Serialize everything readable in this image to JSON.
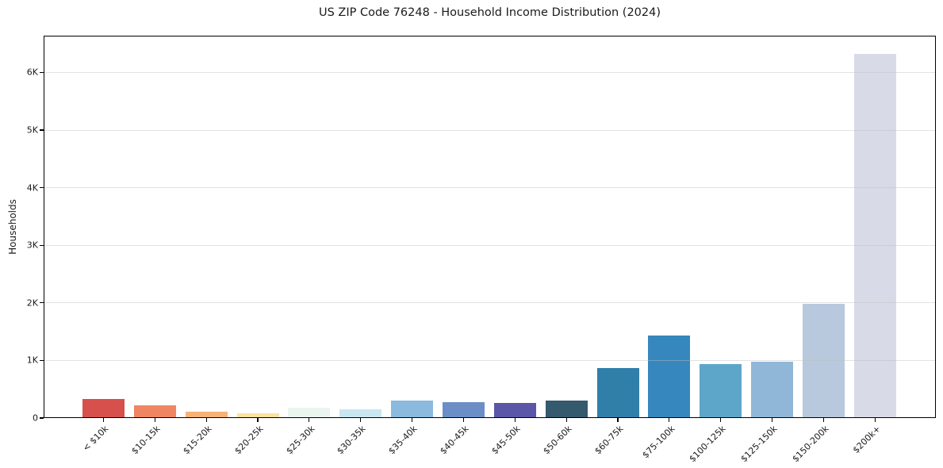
{
  "chart_data": {
    "type": "bar",
    "title": "US ZIP Code 76248 - Household Income Distribution (2024)",
    "xlabel": "",
    "ylabel": "Households",
    "categories": [
      "< $10k",
      "$10-15k",
      "$15-20k",
      "$20-25k",
      "$25-30k",
      "$30-35k",
      "$35-40k",
      "$40-45k",
      "$45-50k",
      "$50-60k",
      "$60-75k",
      "$75-100k",
      "$100-125k",
      "$125-150k",
      "$150-200k",
      "$200k+"
    ],
    "values": [
      330,
      215,
      115,
      85,
      185,
      145,
      305,
      280,
      260,
      310,
      870,
      1430,
      935,
      985,
      1990,
      6330
    ],
    "bar_colors": [
      "#d6504c",
      "#ef8562",
      "#f7b377",
      "#fae2a0",
      "#eaf5f0",
      "#c9e7f0",
      "#8abade",
      "#6b8ec6",
      "#5b56a7",
      "#35596d",
      "#2f7fa9",
      "#3587bd",
      "#5ea6c9",
      "#90b7d8",
      "#b8c8dd",
      "#d8dae7"
    ],
    "ytick_labels": [
      "0",
      "1K",
      "2K",
      "3K",
      "4K",
      "5K",
      "6K"
    ],
    "ytick_values": [
      0,
      1000,
      2000,
      3000,
      4000,
      5000,
      6000
    ],
    "ylim": [
      0,
      6640
    ],
    "grid": "horizontal",
    "legend": "none"
  },
  "style_colors": {
    "background": "#ffffff",
    "axis": "#000000",
    "gridline": "#e0e0e0",
    "text": "#1a1a1a"
  }
}
